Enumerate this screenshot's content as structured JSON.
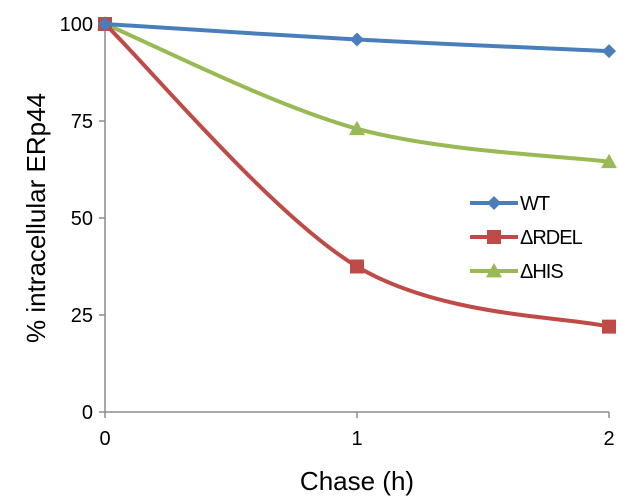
{
  "chart_data": {
    "type": "line",
    "xlabel": "Chase (h)",
    "ylabel": "% intracellular ERp44",
    "x": [
      0,
      1,
      2
    ],
    "x_ticks": [
      "0",
      "1",
      "2"
    ],
    "y_ticks": [
      "0",
      "25",
      "50",
      "75",
      "100"
    ],
    "xlim": [
      0,
      2
    ],
    "ylim": [
      0,
      100
    ],
    "grid": false,
    "legend_position": "right",
    "series": [
      {
        "name": "WT",
        "values": [
          100,
          96,
          93
        ],
        "color": "#4a7ebb",
        "marker": "diamond"
      },
      {
        "name": "ΔRDEL",
        "values": [
          100,
          37.5,
          22
        ],
        "color": "#be4b48",
        "marker": "square"
      },
      {
        "name": "ΔHIS",
        "values": [
          100,
          73,
          64.5
        ],
        "color": "#98b954",
        "marker": "triangle"
      }
    ]
  }
}
